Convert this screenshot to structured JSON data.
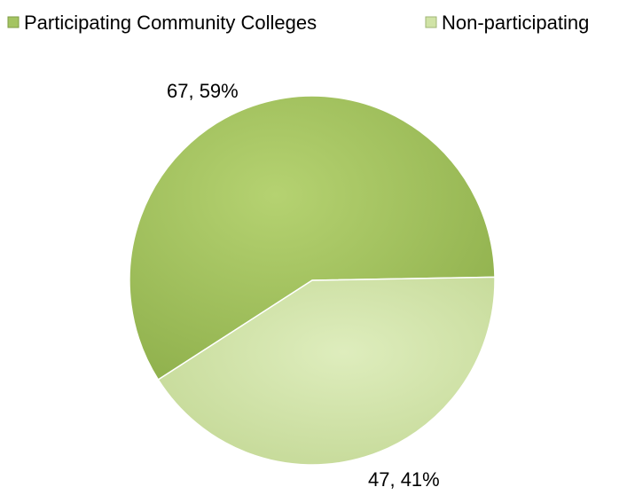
{
  "chart_data": {
    "type": "pie",
    "title": "",
    "legend_position": "top",
    "categories": [
      "Participating Community Colleges",
      "Non-participating"
    ],
    "values": [
      67,
      47
    ],
    "percent_labels": [
      "67, 59%",
      "47, 41%"
    ],
    "colors": [
      "#a4c462",
      "#d0e3a6"
    ]
  }
}
